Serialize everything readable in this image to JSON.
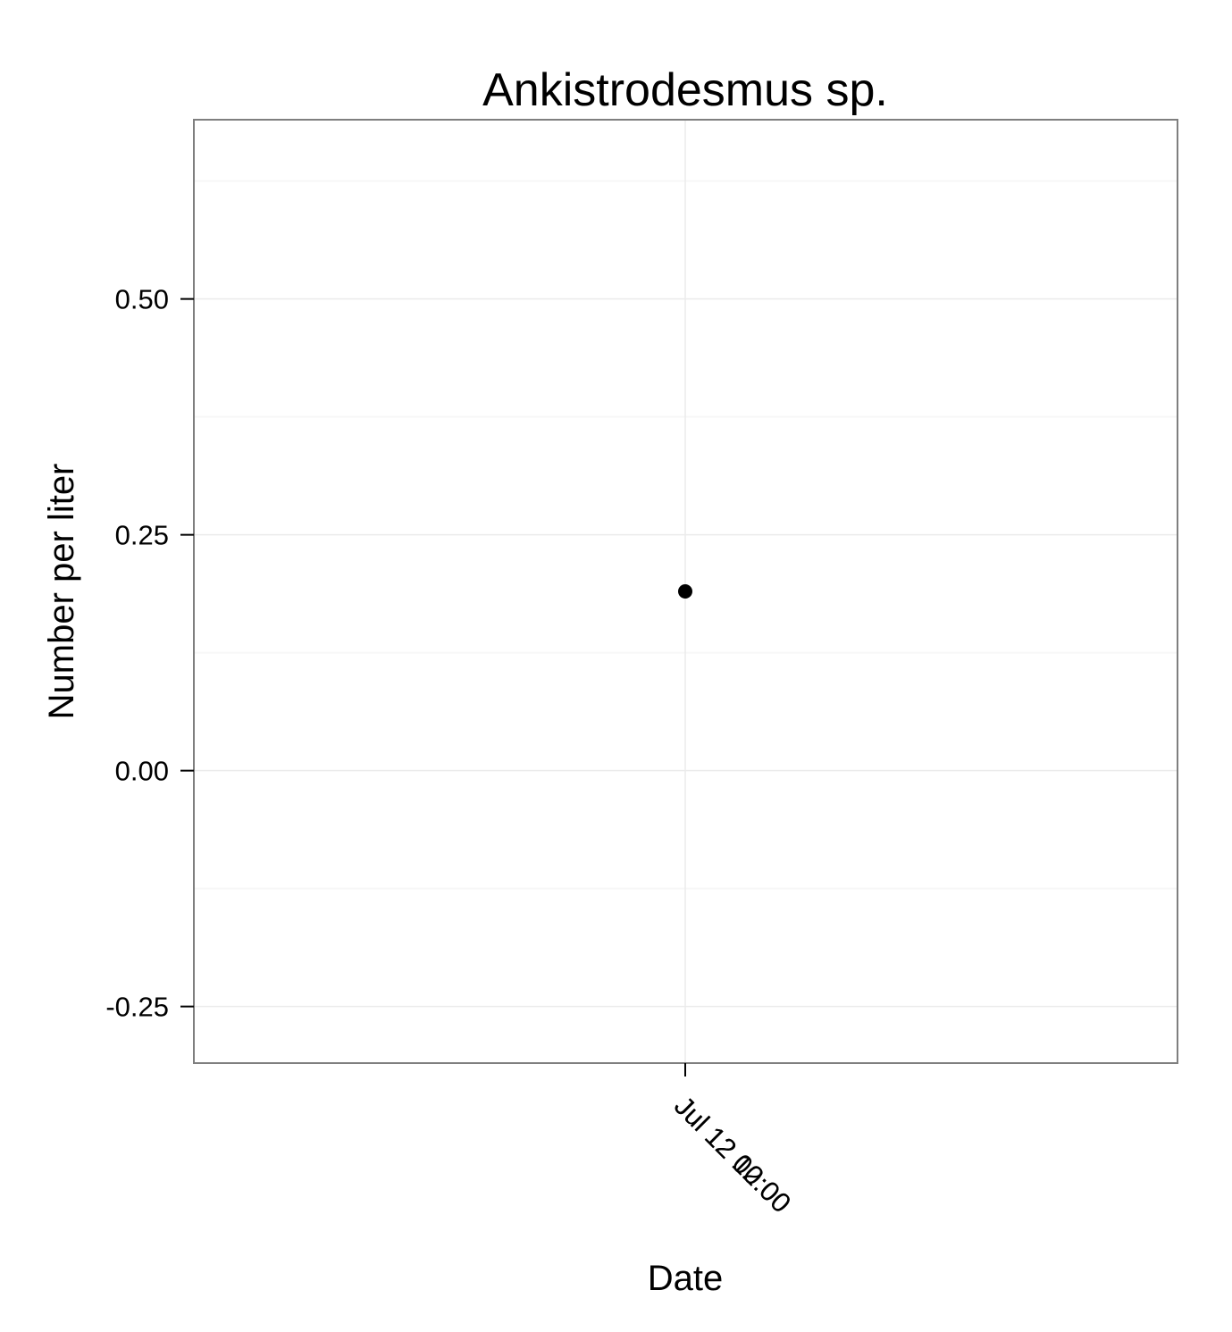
{
  "chart_data": {
    "type": "scatter",
    "title": "Ankistrodesmus sp.",
    "xlabel": "Date",
    "ylabel": "Number per liter",
    "x_ticks": [
      "Jul 12 00:00",
      "Jul 12 12:00"
    ],
    "y_ticks": [
      -0.25,
      0.0,
      0.25,
      0.5
    ],
    "y_tick_labels": [
      "-0.25",
      "0.00",
      "0.25",
      "0.50"
    ],
    "ylim": [
      -0.31,
      0.69
    ],
    "grid": true,
    "series": [
      {
        "points": [
          {
            "x": "Jul 12",
            "y": 0.19
          }
        ]
      }
    ],
    "colors": {
      "point": "#000000",
      "panel_border": "#7f7f7f",
      "grid_major": "#ebebeb",
      "grid_minor": "#f7f7f7",
      "tick": "#000000"
    }
  }
}
